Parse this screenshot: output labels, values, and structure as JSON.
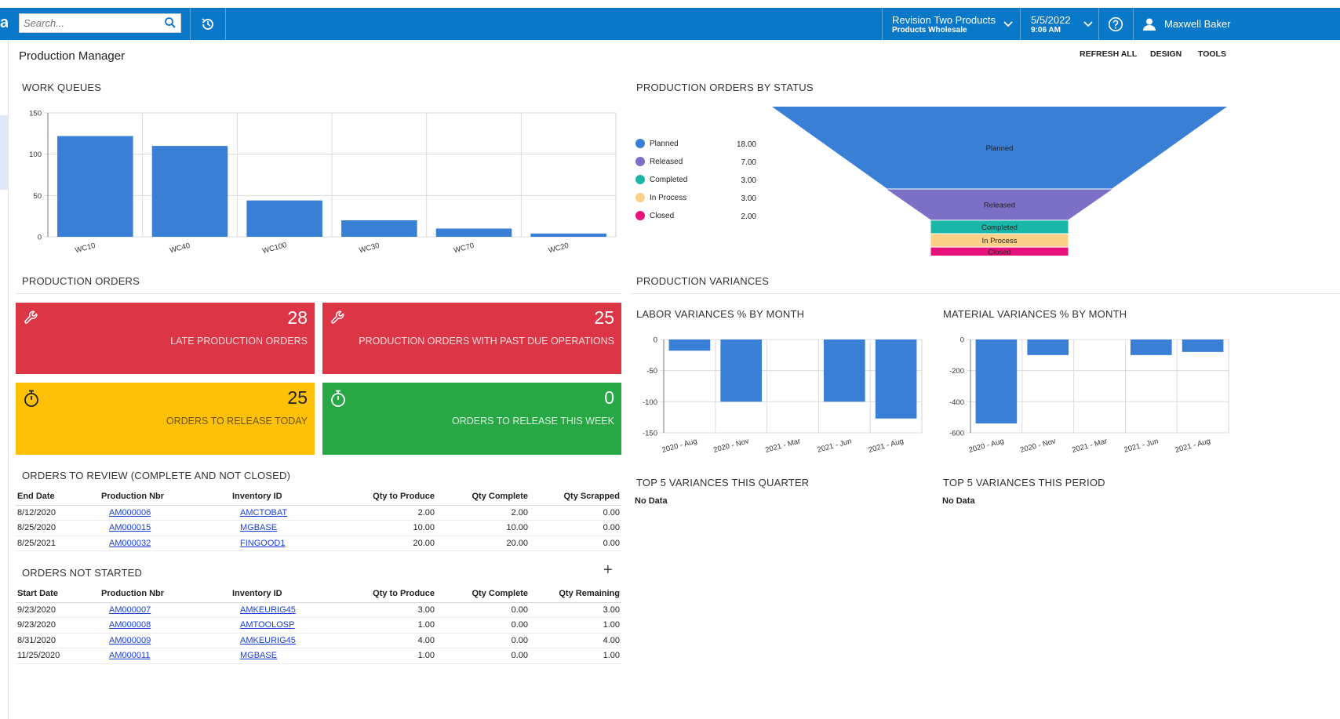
{
  "topbar": {
    "logo_fragment": "a",
    "search_placeholder": "Search...",
    "company_name": "Revision Two Products",
    "branch": "Products Wholesale",
    "date": "5/5/2022",
    "time": "9:06 AM",
    "user": "Maxwell Baker"
  },
  "page": {
    "title": "Production Manager",
    "actions": {
      "refresh": "REFRESH ALL",
      "design": "DESIGN",
      "tools": "TOOLS"
    }
  },
  "sections": {
    "work_queues": "WORK QUEUES",
    "orders_by_status": "PRODUCTION ORDERS BY STATUS",
    "production_orders": "PRODUCTION ORDERS",
    "production_variances": "PRODUCTION VARIANCES",
    "labor_variances": "LABOR VARIANCES % BY MONTH",
    "material_variances": "MATERIAL VARIANCES % BY MONTH",
    "top5_quarter": "TOP 5 VARIANCES THIS QUARTER",
    "top5_period": "TOP 5 VARIANCES THIS PERIOD",
    "no_data": "No Data",
    "orders_to_review": "ORDERS TO REVIEW (COMPLETE AND NOT CLOSED)",
    "orders_not_started": "ORDERS NOT STARTED"
  },
  "tiles": [
    {
      "value": "28",
      "label": "LATE PRODUCTION ORDERS",
      "color": "#dc3545",
      "icon": "wrench-icon"
    },
    {
      "value": "25",
      "label": "PRODUCTION ORDERS WITH PAST DUE OPERATIONS",
      "color": "#dc3545",
      "icon": "wrench-icon"
    },
    {
      "value": "25",
      "label": "ORDERS TO RELEASE TODAY",
      "color": "#ffc107",
      "icon": "stopwatch-icon"
    },
    {
      "value": "0",
      "label": "ORDERS TO RELEASE THIS WEEK",
      "color": "#28a745",
      "icon": "stopwatch-icon"
    }
  ],
  "review_table": {
    "headers": [
      "End Date",
      "Production Nbr",
      "Inventory ID",
      "Qty to Produce",
      "Qty Complete",
      "Qty Scrapped"
    ],
    "rows": [
      [
        "8/12/2020",
        "AM000006",
        "AMCTOBAT",
        "2.00",
        "2.00",
        "0.00"
      ],
      [
        "8/25/2020",
        "AM000015",
        "MGBASE",
        "10.00",
        "10.00",
        "0.00"
      ],
      [
        "8/25/2021",
        "AM000032",
        "FINGOOD1",
        "20.00",
        "20.00",
        "0.00"
      ]
    ]
  },
  "not_started_table": {
    "add_label": "+",
    "headers": [
      "Start Date",
      "Production Nbr",
      "Inventory ID",
      "Qty to Produce",
      "Qty Complete",
      "Qty Remaining"
    ],
    "rows": [
      [
        "9/23/2020",
        "AM000007",
        "AMKEURIG45",
        "3.00",
        "0.00",
        "3.00"
      ],
      [
        "9/23/2020",
        "AM000008",
        "AMTOOLOSP",
        "1.00",
        "0.00",
        "1.00"
      ],
      [
        "8/31/2020",
        "AM000009",
        "AMKEURIG45",
        "4.00",
        "0.00",
        "4.00"
      ],
      [
        "11/25/2020",
        "AM000011",
        "MGBASE",
        "1.00",
        "0.00",
        "1.00"
      ]
    ]
  },
  "chart_data": [
    {
      "id": "work_queues",
      "type": "bar",
      "categories": [
        "WC10",
        "WC40",
        "WC100",
        "WC30",
        "WC70",
        "WC20"
      ],
      "values": [
        122,
        110,
        44,
        20,
        10,
        4
      ],
      "ylim": [
        0,
        150
      ],
      "yticks": [
        0,
        50,
        100,
        150
      ],
      "color": "#3a7fd6",
      "grid": true
    },
    {
      "id": "orders_by_status",
      "type": "funnel",
      "categories": [
        "Planned",
        "Released",
        "Completed",
        "In Process",
        "Closed"
      ],
      "values": [
        18.0,
        7.0,
        3.0,
        3.0,
        2.0
      ],
      "value_labels": [
        "18.00",
        "7.00",
        "3.00",
        "3.00",
        "2.00"
      ],
      "colors": [
        "#3a7fd6",
        "#7b6fc6",
        "#1ab6a8",
        "#fdd08a",
        "#e8127c"
      ],
      "legend": "left"
    },
    {
      "id": "labor_variances",
      "type": "bar",
      "categories": [
        "2020 - Aug",
        "2020 - Nov",
        "2021 - Mar",
        "2021 - Jun",
        "2021 - Aug"
      ],
      "values": [
        -18,
        -100,
        0,
        -100,
        -127
      ],
      "ylim": [
        -150,
        0
      ],
      "yticks": [
        0,
        -50,
        -100,
        -150
      ],
      "color": "#3a7fd6",
      "grid": true
    },
    {
      "id": "material_variances",
      "type": "bar",
      "categories": [
        "2020 - Aug",
        "2020 - Nov",
        "2021 - Mar",
        "2021 - Jun",
        "2021 - Aug"
      ],
      "values": [
        -540,
        -100,
        0,
        -100,
        -80
      ],
      "ylim": [
        -600,
        0
      ],
      "yticks": [
        0,
        -200,
        -400,
        -600
      ],
      "color": "#3a7fd6",
      "grid": true
    }
  ]
}
